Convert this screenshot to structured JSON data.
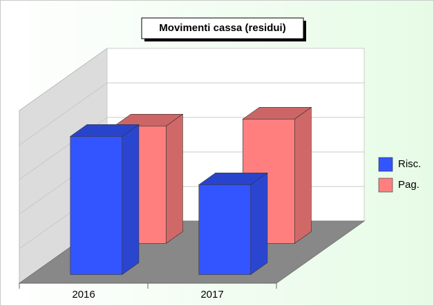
{
  "chart_data": {
    "type": "bar",
    "title": "Movimenti cassa (residui)",
    "categories": [
      "2016",
      "2017"
    ],
    "series": [
      {
        "name": "Risc.",
        "color": "#3355ff",
        "values": [
          4.0,
          2.6
        ]
      },
      {
        "name": "Pag.",
        "color": "#ff7f7f",
        "values": [
          3.4,
          3.6
        ]
      }
    ],
    "ylim": [
      0,
      5
    ]
  }
}
